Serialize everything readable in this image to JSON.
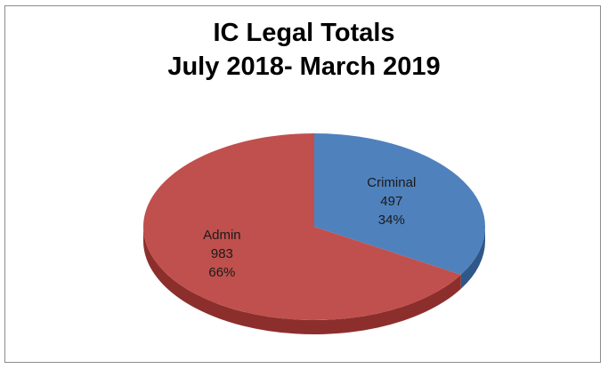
{
  "chart_data": {
    "type": "pie",
    "title_line1": "IC Legal Totals",
    "title_line2": "July 2018- March 2019",
    "slices": [
      {
        "name": "Criminal",
        "value": 497,
        "percent": "34%",
        "color": "#4f81bd",
        "side_color": "#2f5788"
      },
      {
        "name": "Admin",
        "value": 983,
        "percent": "66%",
        "color": "#c0504d",
        "side_color": "#8c2f2c"
      }
    ],
    "three_d": true,
    "legend": "none"
  }
}
